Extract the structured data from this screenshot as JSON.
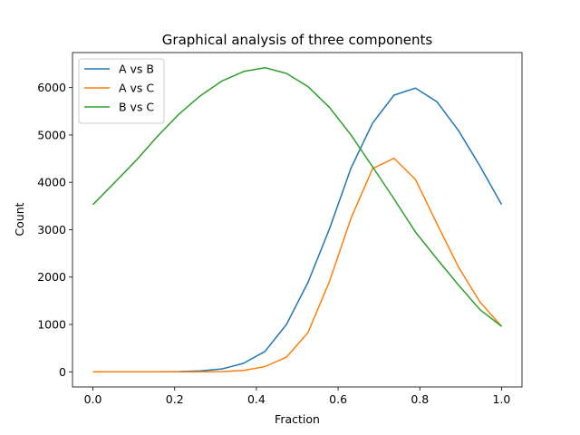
{
  "chart_data": {
    "type": "line",
    "title": "Graphical analysis of three components",
    "xlabel": "Fraction",
    "ylabel": "Count",
    "xlim": [
      -0.05,
      1.05
    ],
    "ylim": [
      -320,
      6740
    ],
    "xticks": [
      0.0,
      0.2,
      0.4,
      0.6,
      0.8,
      1.0
    ],
    "xtick_labels": [
      "0.0",
      "0.2",
      "0.4",
      "0.6",
      "0.8",
      "1.0"
    ],
    "yticks": [
      0,
      1000,
      2000,
      3000,
      4000,
      5000,
      6000
    ],
    "ytick_labels": [
      "0",
      "1000",
      "2000",
      "3000",
      "4000",
      "5000",
      "6000"
    ],
    "grid": false,
    "legend_position": "upper-left",
    "x": [
      0.0,
      0.0526,
      0.1053,
      0.1579,
      0.2105,
      0.2632,
      0.3158,
      0.3684,
      0.4211,
      0.4737,
      0.5263,
      0.5789,
      0.6316,
      0.6842,
      0.7368,
      0.7895,
      0.8421,
      0.8947,
      0.9474,
      1.0
    ],
    "series": [
      {
        "name": "A vs B",
        "color": "#1f77b4",
        "values": [
          0,
          0,
          0,
          2,
          5,
          20,
          60,
          180,
          430,
          1000,
          1890,
          3020,
          4300,
          5250,
          5840,
          5990,
          5700,
          5090,
          4340,
          3530
        ]
      },
      {
        "name": "A vs C",
        "color": "#ff7f0e",
        "values": [
          0,
          0,
          0,
          0,
          0,
          0,
          5,
          30,
          110,
          310,
          830,
          1910,
          3240,
          4290,
          4510,
          4060,
          3120,
          2210,
          1470,
          960
        ]
      },
      {
        "name": "B vs C",
        "color": "#2ca02c",
        "values": [
          3530,
          3990,
          4460,
          4970,
          5440,
          5830,
          6140,
          6340,
          6420,
          6300,
          6020,
          5580,
          5000,
          4330,
          3650,
          2950,
          2380,
          1830,
          1310,
          960
        ]
      }
    ]
  }
}
